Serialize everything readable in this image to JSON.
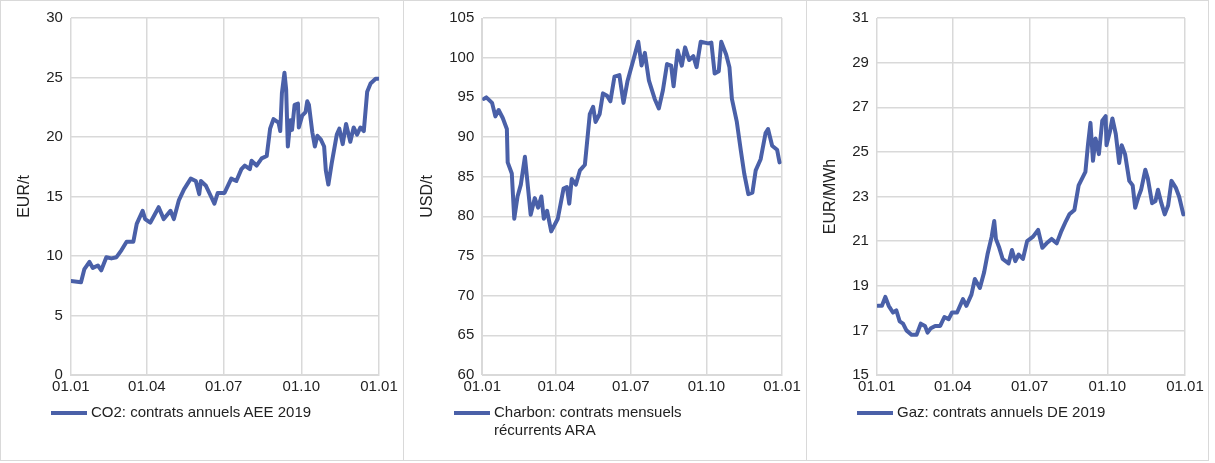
{
  "chart_data": [
    {
      "type": "line",
      "ylabel": "EUR/t",
      "ylim": [
        0,
        30
      ],
      "yticks": [
        0,
        5,
        10,
        15,
        20,
        25,
        30
      ],
      "xlim": [
        "2018-01-01",
        "2019-01-01"
      ],
      "xticks": [
        {
          "value": "2018-01-01",
          "label": "01.01"
        },
        {
          "value": "2018-04-01",
          "label": "01.04"
        },
        {
          "value": "2018-07-01",
          "label": "01.07"
        },
        {
          "value": "2018-10-01",
          "label": "01.10"
        },
        {
          "value": "2019-01-01",
          "label": "01.01"
        }
      ],
      "grid": true,
      "legend": "bottom",
      "marker": "none",
      "line_style": "solid",
      "series": [
        {
          "name": "CO2: contrats annuels AEE 2019",
          "color": "#4a60a8",
          "x": [
            "2018-01-01",
            "2018-01-13",
            "2018-01-17",
            "2018-01-23",
            "2018-01-27",
            "2018-02-02",
            "2018-02-06",
            "2018-02-12",
            "2018-02-18",
            "2018-02-24",
            "2018-03-02",
            "2018-03-08",
            "2018-03-16",
            "2018-03-20",
            "2018-03-27",
            "2018-03-30",
            "2018-04-05",
            "2018-04-15",
            "2018-04-21",
            "2018-04-29",
            "2018-05-03",
            "2018-05-09",
            "2018-05-15",
            "2018-05-23",
            "2018-05-29",
            "2018-06-02",
            "2018-06-04",
            "2018-06-10",
            "2018-06-16",
            "2018-06-20",
            "2018-06-24",
            "2018-07-02",
            "2018-07-10",
            "2018-07-16",
            "2018-07-22",
            "2018-07-26",
            "2018-08-01",
            "2018-08-03",
            "2018-08-09",
            "2018-08-15",
            "2018-08-21",
            "2018-08-25",
            "2018-08-29",
            "2018-09-04",
            "2018-09-06",
            "2018-09-08",
            "2018-09-11",
            "2018-09-13",
            "2018-09-15",
            "2018-09-18",
            "2018-09-20",
            "2018-09-23",
            "2018-09-27",
            "2018-09-28",
            "2018-10-02",
            "2018-10-06",
            "2018-10-08",
            "2018-10-10",
            "2018-10-14",
            "2018-10-17",
            "2018-10-20",
            "2018-10-24",
            "2018-10-28",
            "2018-10-30",
            "2018-11-02",
            "2018-11-06",
            "2018-11-12",
            "2018-11-15",
            "2018-11-19",
            "2018-11-23",
            "2018-11-28",
            "2018-12-02",
            "2018-12-06",
            "2018-12-10",
            "2018-12-14",
            "2018-12-18",
            "2018-12-22",
            "2018-12-28",
            "2018-12-31"
          ],
          "values": [
            7.9,
            7.8,
            8.9,
            9.5,
            9.0,
            9.2,
            8.8,
            9.9,
            9.8,
            9.9,
            10.5,
            11.2,
            11.2,
            12.7,
            13.8,
            13.1,
            12.8,
            14.1,
            13.1,
            13.8,
            13.1,
            14.7,
            15.6,
            16.5,
            16.3,
            15.2,
            16.3,
            15.9,
            15.0,
            14.4,
            15.3,
            15.3,
            16.5,
            16.3,
            17.3,
            17.6,
            17.3,
            18.0,
            17.6,
            18.2,
            18.4,
            20.7,
            21.5,
            21.2,
            20.5,
            23.7,
            25.4,
            24.0,
            19.2,
            21.4,
            20.6,
            22.7,
            22.8,
            20.8,
            21.8,
            22.1,
            23.0,
            22.7,
            20.4,
            19.2,
            20.1,
            19.8,
            19.2,
            17.2,
            16.0,
            17.8,
            20.2,
            20.7,
            19.4,
            21.1,
            19.6,
            20.8,
            20.2,
            20.8,
            20.5,
            23.8,
            24.5,
            24.9,
            24.9
          ]
        }
      ]
    },
    {
      "type": "line",
      "ylabel": "USD/t",
      "ylim": [
        60,
        105
      ],
      "yticks": [
        60,
        65,
        70,
        75,
        80,
        85,
        90,
        95,
        100,
        105
      ],
      "xlim": [
        "2018-01-01",
        "2019-01-01"
      ],
      "xticks": [
        {
          "value": "2018-01-01",
          "label": "01.01"
        },
        {
          "value": "2018-04-01",
          "label": "01.04"
        },
        {
          "value": "2018-07-01",
          "label": "01.07"
        },
        {
          "value": "2018-10-01",
          "label": "01.10"
        },
        {
          "value": "2019-01-01",
          "label": "01.01"
        }
      ],
      "grid": true,
      "legend": "bottom",
      "marker": "none",
      "line_style": "solid",
      "series": [
        {
          "name": "Charbon: contrats mensuels récurrents ARA",
          "color": "#4a60a8",
          "x": [
            "2018-01-03",
            "2018-01-06",
            "2018-01-13",
            "2018-01-17",
            "2018-01-21",
            "2018-01-26",
            "2018-01-31",
            "2018-02-01",
            "2018-02-06",
            "2018-02-09",
            "2018-02-13",
            "2018-02-17",
            "2018-02-22",
            "2018-03-01",
            "2018-03-06",
            "2018-03-10",
            "2018-03-14",
            "2018-03-17",
            "2018-03-21",
            "2018-03-26",
            "2018-04-03",
            "2018-04-10",
            "2018-04-14",
            "2018-04-17",
            "2018-04-20",
            "2018-04-25",
            "2018-04-30",
            "2018-05-06",
            "2018-05-12",
            "2018-05-16",
            "2018-05-19",
            "2018-05-24",
            "2018-05-28",
            "2018-06-02",
            "2018-06-06",
            "2018-06-11",
            "2018-06-17",
            "2018-06-22",
            "2018-06-27",
            "2018-07-04",
            "2018-07-10",
            "2018-07-14",
            "2018-07-18",
            "2018-07-23",
            "2018-07-30",
            "2018-08-04",
            "2018-08-09",
            "2018-08-14",
            "2018-08-19",
            "2018-08-22",
            "2018-08-27",
            "2018-09-01",
            "2018-09-05",
            "2018-09-10",
            "2018-09-15",
            "2018-09-19",
            "2018-09-24",
            "2018-10-03",
            "2018-10-07",
            "2018-10-11",
            "2018-10-16",
            "2018-10-19",
            "2018-10-25",
            "2018-10-29",
            "2018-11-01",
            "2018-11-07",
            "2018-11-12",
            "2018-11-16",
            "2018-11-21",
            "2018-11-26",
            "2018-11-30",
            "2018-12-06",
            "2018-12-12",
            "2018-12-15",
            "2018-12-20",
            "2018-12-26",
            "2018-12-29"
          ],
          "values": [
            94.8,
            95.0,
            94.3,
            92.6,
            93.4,
            92.4,
            91.0,
            86.8,
            85.4,
            79.7,
            82.5,
            84.0,
            87.5,
            80.2,
            82.3,
            81.1,
            82.5,
            79.7,
            80.7,
            78.1,
            79.7,
            83.5,
            83.7,
            81.6,
            84.7,
            84.0,
            85.8,
            86.5,
            92.9,
            93.8,
            91.9,
            92.9,
            95.5,
            95.2,
            94.5,
            97.6,
            97.8,
            94.3,
            97.1,
            99.7,
            102.0,
            99.0,
            100.6,
            97.1,
            94.8,
            93.6,
            95.9,
            99.2,
            99.0,
            96.4,
            100.9,
            99.0,
            101.3,
            99.7,
            100.2,
            98.8,
            102.0,
            101.8,
            101.9,
            98.0,
            98.3,
            102.0,
            100.4,
            98.8,
            94.8,
            91.9,
            88.2,
            85.4,
            82.8,
            83.0,
            85.8,
            87.2,
            90.5,
            91.0,
            88.9,
            88.4,
            86.8
          ]
        }
      ]
    },
    {
      "type": "line",
      "ylabel": "EUR/MWh",
      "ylim": [
        15,
        31
      ],
      "yticks": [
        15,
        17,
        19,
        21,
        23,
        25,
        27,
        29,
        31
      ],
      "xlim": [
        "2018-01-01",
        "2019-01-01"
      ],
      "xticks": [
        {
          "value": "2018-01-01",
          "label": "01.01"
        },
        {
          "value": "2018-04-01",
          "label": "01.04"
        },
        {
          "value": "2018-07-01",
          "label": "01.07"
        },
        {
          "value": "2018-10-01",
          "label": "01.10"
        },
        {
          "value": "2019-01-01",
          "label": "01.01"
        }
      ],
      "grid": true,
      "legend": "bottom",
      "marker": "none",
      "line_style": "solid",
      "series": [
        {
          "name": "Gaz: contrats annuels DE 2019",
          "color": "#4a60a8",
          "x": [
            "2018-01-02",
            "2018-01-07",
            "2018-01-11",
            "2018-01-15",
            "2018-01-20",
            "2018-01-24",
            "2018-01-28",
            "2018-02-01",
            "2018-02-05",
            "2018-02-11",
            "2018-02-17",
            "2018-02-22",
            "2018-02-27",
            "2018-03-02",
            "2018-03-06",
            "2018-03-11",
            "2018-03-17",
            "2018-03-22",
            "2018-03-27",
            "2018-03-31",
            "2018-04-06",
            "2018-04-13",
            "2018-04-17",
            "2018-04-23",
            "2018-04-27",
            "2018-05-03",
            "2018-05-08",
            "2018-05-12",
            "2018-05-17",
            "2018-05-20",
            "2018-05-22",
            "2018-05-26",
            "2018-05-30",
            "2018-06-06",
            "2018-06-10",
            "2018-06-14",
            "2018-06-18",
            "2018-06-23",
            "2018-06-28",
            "2018-07-05",
            "2018-07-11",
            "2018-07-16",
            "2018-07-21",
            "2018-07-27",
            "2018-08-02",
            "2018-08-07",
            "2018-08-13",
            "2018-08-17",
            "2018-08-23",
            "2018-08-28",
            "2018-09-01",
            "2018-09-05",
            "2018-09-08",
            "2018-09-11",
            "2018-09-14",
            "2018-09-17",
            "2018-09-21",
            "2018-09-25",
            "2018-09-29",
            "2018-09-30",
            "2018-10-04",
            "2018-10-07",
            "2018-10-11",
            "2018-10-15",
            "2018-10-18",
            "2018-10-22",
            "2018-10-27",
            "2018-10-31",
            "2018-11-03",
            "2018-11-07",
            "2018-11-10",
            "2018-11-15",
            "2018-11-18",
            "2018-11-23",
            "2018-11-27",
            "2018-11-30",
            "2018-12-04",
            "2018-12-08",
            "2018-12-12",
            "2018-12-16",
            "2018-12-21",
            "2018-12-25",
            "2018-12-30"
          ],
          "values": [
            18.1,
            18.1,
            18.5,
            18.1,
            17.8,
            17.9,
            17.4,
            17.3,
            17.0,
            16.8,
            16.8,
            17.3,
            17.2,
            16.9,
            17.1,
            17.2,
            17.2,
            17.6,
            17.5,
            17.8,
            17.8,
            18.4,
            18.1,
            18.6,
            19.3,
            18.9,
            19.6,
            20.4,
            21.2,
            21.9,
            21.1,
            20.7,
            20.2,
            20.0,
            20.6,
            20.1,
            20.4,
            20.2,
            21.0,
            21.2,
            21.5,
            20.7,
            20.9,
            21.1,
            20.9,
            21.4,
            21.9,
            22.2,
            22.4,
            23.5,
            23.8,
            24.1,
            25.3,
            26.3,
            24.6,
            25.6,
            24.9,
            26.4,
            26.6,
            25.3,
            25.9,
            26.5,
            25.8,
            24.5,
            25.3,
            24.9,
            23.7,
            23.5,
            22.5,
            23.0,
            23.3,
            24.2,
            23.8,
            22.7,
            22.8,
            23.3,
            22.7,
            22.2,
            22.6,
            23.7,
            23.4,
            23.0,
            22.2
          ]
        }
      ]
    }
  ]
}
